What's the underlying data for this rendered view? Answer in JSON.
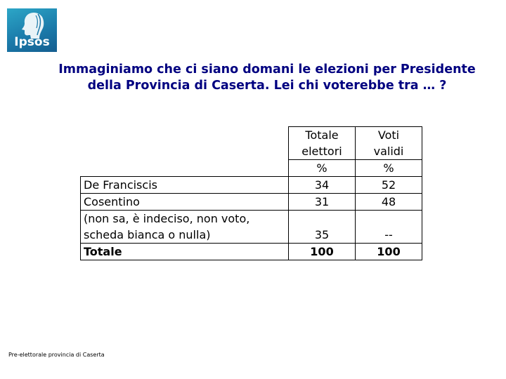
{
  "logo": {
    "text": "Ipsos"
  },
  "title": {
    "line1": "Immaginiamo che ci siano domani le elezioni per Presidente",
    "line2": "della Provincia di Caserta. Lei chi voterebbe tra … ?"
  },
  "table": {
    "headers": {
      "col1_line1": "Totale",
      "col1_line2": "elettori",
      "col1_unit": "%",
      "col2_line1": "Voti",
      "col2_line2": "validi",
      "col2_unit": "%"
    },
    "rows": [
      {
        "label": "De Franciscis",
        "totale": "34",
        "validi": "52"
      },
      {
        "label": "Cosentino",
        "totale": "31",
        "validi": "48"
      },
      {
        "label_line1": "(non sa, è indeciso, non voto,",
        "label_line2": "scheda bianca o nulla)",
        "totale": "35",
        "validi": "--"
      },
      {
        "label": "Totale",
        "totale": "100",
        "validi": "100"
      }
    ]
  },
  "footer": {
    "text": "Pre-elettorale provincia di Caserta"
  }
}
